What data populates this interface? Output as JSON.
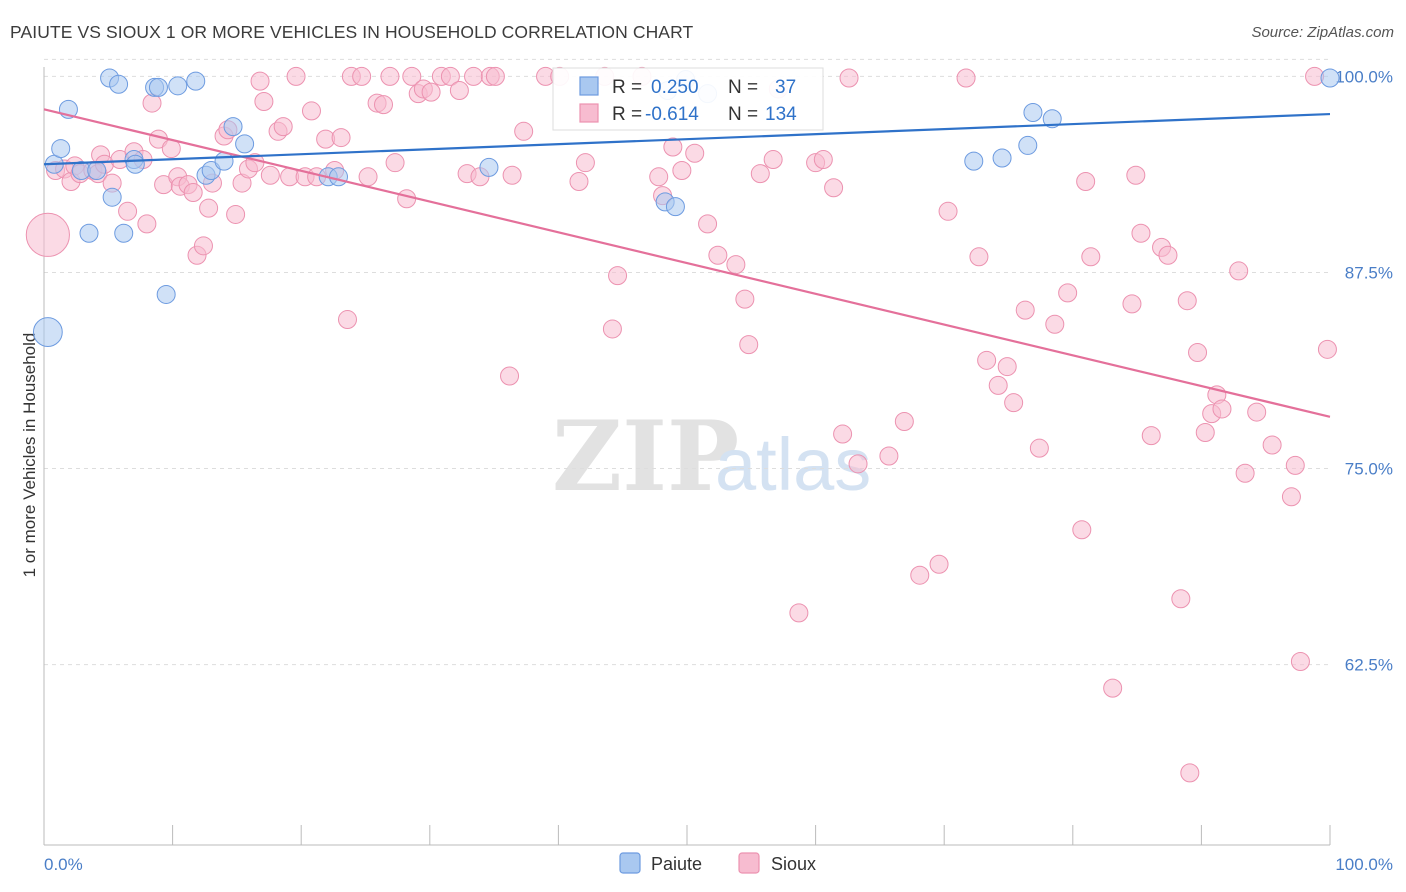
{
  "title": "PAIUTE VS SIOUX 1 OR MORE VEHICLES IN HOUSEHOLD CORRELATION CHART",
  "source": "Source: ZipAtlas.com",
  "watermark": {
    "zip": "ZIP",
    "atlas": "atlas"
  },
  "colors": {
    "paiute_fill": "#a9c8f0",
    "paiute_stroke": "#6d9be0",
    "paiute_line": "#2f72c9",
    "sioux_fill": "#f7bcd0",
    "sioux_stroke": "#ec92b0",
    "sioux_line": "#e4709a",
    "tick_text": "#4a7ec7",
    "grid": "#dddddd"
  },
  "legend": {
    "paiute": {
      "r_label": "R =",
      "r_value": "0.250",
      "n_label": "N =",
      "n_value": "37"
    },
    "sioux": {
      "r_label": "R =",
      "r_value": "-0.614",
      "n_label": "N =",
      "n_value": "134"
    }
  },
  "chart_data": {
    "type": "scatter",
    "title": "PAIUTE VS SIOUX 1 OR MORE VEHICLES IN HOUSEHOLD CORRELATION CHART",
    "xlabel": "",
    "ylabel": "1 or more Vehicles in Household",
    "xlim": [
      0,
      100
    ],
    "ylim": [
      51.0,
      100.6
    ],
    "x_tick_labels": [
      "0.0%",
      "100.0%"
    ],
    "y_ticks": [
      62.5,
      75.0,
      87.5,
      100.0
    ],
    "y_tick_labels": [
      "62.5%",
      "75.0%",
      "87.5%",
      "100.0%"
    ],
    "grid": true,
    "legend_position": "top-center",
    "series": [
      {
        "name": "Paiute",
        "trend": {
          "x": [
            0,
            100
          ],
          "y": [
            94.4,
            97.6
          ]
        },
        "points": [
          [
            0.3,
            83.7,
            1.6
          ],
          [
            0.8,
            94.4,
            1
          ],
          [
            1.9,
            97.9,
            1
          ],
          [
            1.3,
            95.4,
            1
          ],
          [
            2.9,
            94.0,
            1
          ],
          [
            3.5,
            90.0,
            1
          ],
          [
            4.1,
            94.0,
            1
          ],
          [
            5.1,
            99.9,
            1
          ],
          [
            5.8,
            99.5,
            1
          ],
          [
            5.3,
            92.3,
            1
          ],
          [
            6.2,
            90.0,
            1
          ],
          [
            7.0,
            94.7,
            1
          ],
          [
            7.1,
            94.4,
            1
          ],
          [
            8.6,
            99.3,
            1
          ],
          [
            8.9,
            99.3,
            1
          ],
          [
            9.5,
            86.1,
            1
          ],
          [
            10.4,
            99.4,
            1
          ],
          [
            11.8,
            99.7,
            1
          ],
          [
            12.6,
            93.7,
            1
          ],
          [
            13.0,
            94.0,
            1
          ],
          [
            14.0,
            94.6,
            1
          ],
          [
            14.7,
            96.8,
            1
          ],
          [
            15.6,
            95.7,
            1
          ],
          [
            22.1,
            93.6,
            1
          ],
          [
            22.9,
            93.6,
            1
          ],
          [
            34.6,
            94.2,
            1
          ],
          [
            48.3,
            92.0,
            1
          ],
          [
            48.5,
            99.1,
            1
          ],
          [
            49.1,
            91.7,
            1
          ],
          [
            49.9,
            99.8,
            1
          ],
          [
            51.6,
            98.9,
            1
          ],
          [
            72.3,
            94.6,
            1
          ],
          [
            74.5,
            94.8,
            1
          ],
          [
            76.5,
            95.6,
            1
          ],
          [
            76.9,
            97.7,
            1
          ],
          [
            78.4,
            97.3,
            1
          ],
          [
            100.0,
            99.9,
            1
          ]
        ]
      },
      {
        "name": "Sioux",
        "trend": {
          "x": [
            0,
            100
          ],
          "y": [
            97.9,
            78.3
          ]
        },
        "points": [
          [
            0.3,
            89.9,
            2.4
          ],
          [
            0.9,
            94.0,
            1
          ],
          [
            1.6,
            94.1,
            1
          ],
          [
            2.1,
            93.3,
            1
          ],
          [
            2.4,
            94.3,
            1
          ],
          [
            2.8,
            93.8,
            1
          ],
          [
            3.8,
            94.0,
            1
          ],
          [
            4.2,
            93.8,
            1
          ],
          [
            4.4,
            95.0,
            1
          ],
          [
            4.7,
            94.4,
            1
          ],
          [
            5.3,
            93.2,
            1
          ],
          [
            5.9,
            94.7,
            1
          ],
          [
            6.5,
            91.4,
            1
          ],
          [
            7.0,
            95.2,
            1
          ],
          [
            7.7,
            94.7,
            1
          ],
          [
            8.0,
            90.6,
            1
          ],
          [
            8.4,
            98.3,
            1
          ],
          [
            8.9,
            96.0,
            1
          ],
          [
            9.3,
            93.1,
            1
          ],
          [
            9.9,
            95.4,
            1
          ],
          [
            10.4,
            93.6,
            1
          ],
          [
            10.6,
            93.0,
            1
          ],
          [
            11.2,
            93.1,
            1
          ],
          [
            11.6,
            92.6,
            1
          ],
          [
            11.9,
            88.6,
            1
          ],
          [
            12.4,
            89.2,
            1
          ],
          [
            12.8,
            91.6,
            1
          ],
          [
            13.1,
            93.2,
            1
          ],
          [
            14.0,
            96.2,
            1
          ],
          [
            14.3,
            96.6,
            1
          ],
          [
            14.9,
            91.2,
            1
          ],
          [
            15.4,
            93.2,
            1
          ],
          [
            15.9,
            94.1,
            1
          ],
          [
            16.4,
            94.5,
            1
          ],
          [
            16.8,
            99.7,
            1
          ],
          [
            17.1,
            98.4,
            1
          ],
          [
            17.6,
            93.7,
            1
          ],
          [
            18.2,
            96.5,
            1
          ],
          [
            18.6,
            96.8,
            1
          ],
          [
            19.1,
            93.6,
            1
          ],
          [
            19.6,
            100.0,
            1
          ],
          [
            20.3,
            93.6,
            1
          ],
          [
            20.8,
            97.8,
            1
          ],
          [
            21.2,
            93.6,
            1
          ],
          [
            21.9,
            96.0,
            1
          ],
          [
            22.6,
            94.0,
            1
          ],
          [
            23.1,
            96.1,
            1
          ],
          [
            23.6,
            84.5,
            1
          ],
          [
            23.9,
            100.0,
            1
          ],
          [
            24.7,
            100.0,
            1
          ],
          [
            25.2,
            93.6,
            1
          ],
          [
            25.9,
            98.3,
            1
          ],
          [
            26.4,
            98.2,
            1
          ],
          [
            26.9,
            100.0,
            1
          ],
          [
            27.3,
            94.5,
            1
          ],
          [
            28.2,
            92.2,
            1
          ],
          [
            28.6,
            100.0,
            1
          ],
          [
            29.1,
            98.9,
            1
          ],
          [
            29.5,
            99.2,
            1
          ],
          [
            30.1,
            99.0,
            1
          ],
          [
            30.9,
            100.0,
            1
          ],
          [
            31.6,
            100.0,
            1
          ],
          [
            32.3,
            99.1,
            1
          ],
          [
            32.9,
            93.8,
            1
          ],
          [
            33.4,
            100.0,
            1
          ],
          [
            33.9,
            93.6,
            1
          ],
          [
            34.7,
            100.0,
            1
          ],
          [
            35.1,
            100.0,
            1
          ],
          [
            36.2,
            80.9,
            1
          ],
          [
            36.4,
            93.7,
            1
          ],
          [
            37.3,
            96.5,
            1
          ],
          [
            39.0,
            100.0,
            1
          ],
          [
            40.1,
            100.0,
            1
          ],
          [
            41.6,
            93.3,
            1
          ],
          [
            42.1,
            94.5,
            1
          ],
          [
            43.6,
            100.0,
            1
          ],
          [
            44.2,
            83.9,
            1
          ],
          [
            44.6,
            87.3,
            1
          ],
          [
            46.5,
            100.0,
            1
          ],
          [
            47.8,
            93.6,
            1
          ],
          [
            48.1,
            92.4,
            1
          ],
          [
            48.9,
            95.5,
            1
          ],
          [
            49.6,
            94.0,
            1
          ],
          [
            50.6,
            95.1,
            1
          ],
          [
            51.6,
            90.6,
            1
          ],
          [
            52.4,
            88.6,
            1
          ],
          [
            53.8,
            88.0,
            1
          ],
          [
            54.5,
            85.8,
            1
          ],
          [
            54.8,
            82.9,
            1
          ],
          [
            55.7,
            93.8,
            1
          ],
          [
            56.7,
            94.7,
            1
          ],
          [
            57.1,
            99.2,
            1
          ],
          [
            58.7,
            65.8,
            1
          ],
          [
            60.0,
            94.5,
            1
          ],
          [
            60.6,
            94.7,
            1
          ],
          [
            61.4,
            92.9,
            1
          ],
          [
            62.1,
            77.2,
            1
          ],
          [
            62.6,
            99.9,
            1
          ],
          [
            63.3,
            75.3,
            1
          ],
          [
            65.7,
            75.8,
            1
          ],
          [
            66.9,
            78.0,
            1
          ],
          [
            68.1,
            68.2,
            1
          ],
          [
            69.6,
            68.9,
            1
          ],
          [
            70.3,
            91.4,
            1
          ],
          [
            71.7,
            99.9,
            1
          ],
          [
            72.7,
            88.5,
            1
          ],
          [
            73.3,
            81.9,
            1
          ],
          [
            74.2,
            80.3,
            1
          ],
          [
            74.9,
            81.5,
            1
          ],
          [
            75.4,
            79.2,
            1
          ],
          [
            76.3,
            85.1,
            1
          ],
          [
            77.4,
            76.3,
            1
          ],
          [
            78.6,
            84.2,
            1
          ],
          [
            79.6,
            86.2,
            1
          ],
          [
            80.7,
            71.1,
            1
          ],
          [
            81.0,
            93.3,
            1
          ],
          [
            81.4,
            88.5,
            1
          ],
          [
            83.1,
            61.0,
            1
          ],
          [
            84.6,
            85.5,
            1
          ],
          [
            84.9,
            93.7,
            1
          ],
          [
            85.3,
            90.0,
            1
          ],
          [
            86.1,
            77.1,
            1
          ],
          [
            86.9,
            89.1,
            1
          ],
          [
            87.4,
            88.6,
            1
          ],
          [
            88.4,
            66.7,
            1
          ],
          [
            88.9,
            85.7,
            1
          ],
          [
            89.1,
            55.6,
            1
          ],
          [
            89.7,
            82.4,
            1
          ],
          [
            90.3,
            77.3,
            1
          ],
          [
            90.8,
            78.5,
            1
          ],
          [
            91.2,
            79.7,
            1
          ],
          [
            91.6,
            78.8,
            1
          ],
          [
            92.9,
            87.6,
            1
          ],
          [
            93.4,
            74.7,
            1
          ],
          [
            94.3,
            78.6,
            1
          ],
          [
            95.5,
            76.5,
            1
          ],
          [
            97.0,
            73.2,
            1
          ],
          [
            97.3,
            75.2,
            1
          ],
          [
            97.7,
            62.7,
            1
          ],
          [
            98.8,
            100.0,
            1
          ],
          [
            99.8,
            82.6,
            1
          ]
        ]
      }
    ]
  }
}
